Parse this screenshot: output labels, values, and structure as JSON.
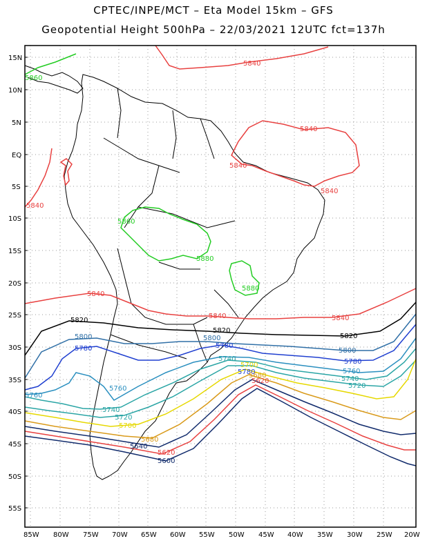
{
  "header": {
    "title_line1": "CPTEC/INPE/MCT –  Eta Model 15km – GFS",
    "title_line2": "Geopotential Height 500hPa – 22/03/2021 12UTC fct=137h"
  },
  "map": {
    "lat_labels": [
      "15N",
      "10N",
      "5N",
      "EQ",
      "5S",
      "10S",
      "15S",
      "20S",
      "25S",
      "30S",
      "35S",
      "40S",
      "45S",
      "50S",
      "55S"
    ],
    "lon_labels": [
      "85W",
      "80W",
      "75W",
      "70W",
      "65W",
      "60W",
      "55W",
      "50W",
      "45W",
      "40W",
      "35W",
      "30W",
      "25W",
      "20W"
    ],
    "contour_labels": [
      {
        "text": "5840",
        "color": "#e8403f"
      },
      {
        "text": "5840",
        "color": "#e8403f"
      },
      {
        "text": "5840",
        "color": "#e8403f"
      },
      {
        "text": "5840",
        "color": "#e8403f"
      },
      {
        "text": "5840",
        "color": "#e8403f"
      },
      {
        "text": "5840",
        "color": "#e8403f"
      },
      {
        "text": "5840",
        "color": "#e8403f"
      },
      {
        "text": "5840",
        "color": "#e8403f"
      },
      {
        "text": "5860",
        "color": "#22cc22"
      },
      {
        "text": "5860",
        "color": "#22cc22"
      },
      {
        "text": "5880",
        "color": "#22cc22"
      },
      {
        "text": "5880",
        "color": "#22cc22"
      },
      {
        "text": "5820",
        "color": "#000000"
      },
      {
        "text": "5820",
        "color": "#000000"
      },
      {
        "text": "5820",
        "color": "#000000"
      },
      {
        "text": "5800",
        "color": "#2f6fa6"
      },
      {
        "text": "5800",
        "color": "#2f6fa6"
      },
      {
        "text": "5800",
        "color": "#2f6fa6"
      },
      {
        "text": "5780",
        "color": "#1f3fd0"
      },
      {
        "text": "5780",
        "color": "#1f3fd0"
      },
      {
        "text": "5780",
        "color": "#1f3fd0"
      },
      {
        "text": "5780",
        "color": "#1f3fd0"
      },
      {
        "text": "5760",
        "color": "#2a8fbf"
      },
      {
        "text": "5760",
        "color": "#2a8fbf"
      },
      {
        "text": "5760",
        "color": "#2a8fbf"
      },
      {
        "text": "5740",
        "color": "#2aa5a5"
      },
      {
        "text": "5740",
        "color": "#2aa5a5"
      },
      {
        "text": "5740",
        "color": "#2aa5a5"
      },
      {
        "text": "5720",
        "color": "#2aa5a5"
      },
      {
        "text": "5720",
        "color": "#2aa5a5"
      },
      {
        "text": "5700",
        "color": "#e6d800"
      },
      {
        "text": "5700",
        "color": "#e6d800"
      },
      {
        "text": "5680",
        "color": "#d99a1a"
      },
      {
        "text": "5680",
        "color": "#d99a1a"
      },
      {
        "text": "5640",
        "color": "#102a6b"
      },
      {
        "text": "5620",
        "color": "#e8403f"
      },
      {
        "text": "5620",
        "color": "#e8403f"
      },
      {
        "text": "5600",
        "color": "#102a6b"
      }
    ]
  }
}
